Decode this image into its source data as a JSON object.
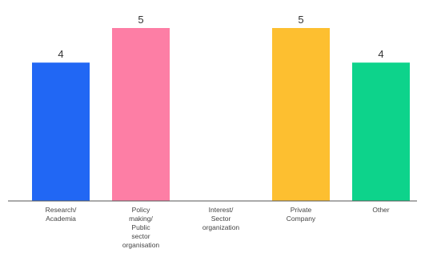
{
  "chart_data": {
    "type": "bar",
    "categories": [
      [
        "Research/",
        "Academia"
      ],
      [
        "Policy",
        "making/",
        "Public",
        "sector",
        "organisation"
      ],
      [
        "Interest/",
        "Sector",
        "organization"
      ],
      [
        "Private",
        "Company"
      ],
      [
        "Other"
      ]
    ],
    "values": [
      4,
      5,
      0,
      5,
      4
    ],
    "value_labels": [
      "4",
      "5",
      "",
      "5",
      "4"
    ],
    "colors": [
      "#2167f4",
      "#fd7ea5",
      "#cccccc",
      "#fdbf30",
      "#0dd38b"
    ],
    "ylim": [
      0,
      5
    ],
    "grid": false,
    "legend": "none",
    "title": "",
    "xlabel": "",
    "ylabel": ""
  }
}
